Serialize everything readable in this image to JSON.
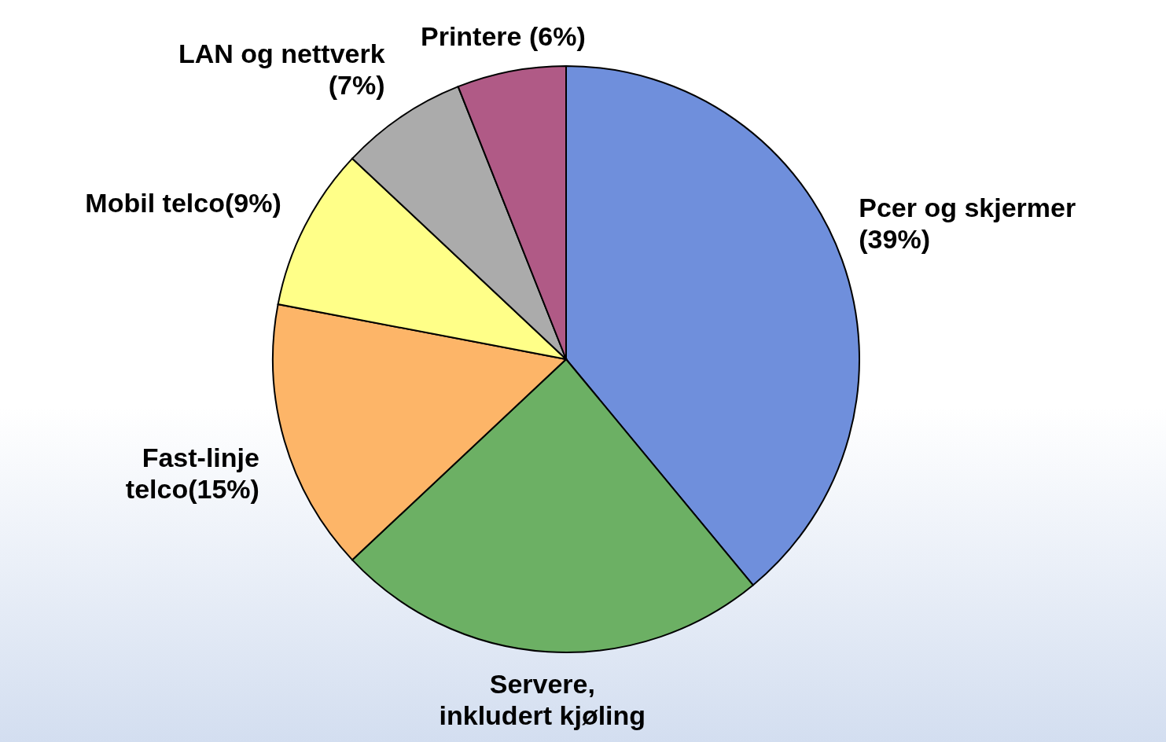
{
  "chart_data": {
    "type": "pie",
    "categories": [
      "Pcer og skjermer (39%)",
      "Servere, inkludert kjøling",
      "Fast-linje telco(15%)",
      "Mobil telco(9%)",
      "LAN og nettverk (7%)",
      "Printere (6%)"
    ],
    "values": [
      39,
      24,
      15,
      9,
      7,
      6
    ],
    "colors": [
      "#6f8fdc",
      "#6cb064",
      "#fdb568",
      "#ffff88",
      "#ababab",
      "#b05a86"
    ]
  }
}
